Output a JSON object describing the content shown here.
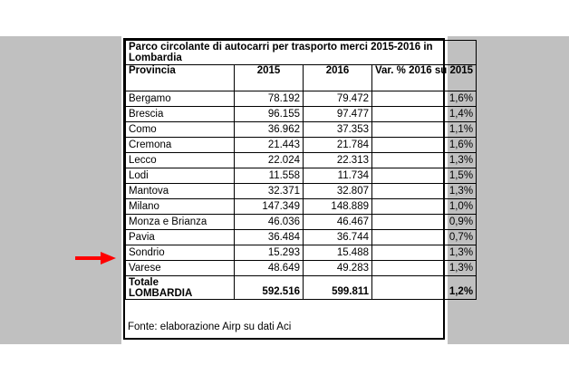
{
  "table": {
    "title": "Parco circolante di autocarri per trasporto merci 2015-2016 in Lombardia",
    "headers": {
      "province": "Provincia",
      "y2015": "2015",
      "y2016": "2016",
      "variation": "Var. % 2016 su 2015"
    },
    "rows": [
      {
        "province": "Bergamo",
        "y2015": "78.192",
        "y2016": "79.472",
        "var": "1,6%"
      },
      {
        "province": "Brescia",
        "y2015": "96.155",
        "y2016": "97.477",
        "var": "1,4%"
      },
      {
        "province": "Como",
        "y2015": "36.962",
        "y2016": "37.353",
        "var": "1,1%"
      },
      {
        "province": "Cremona",
        "y2015": "21.443",
        "y2016": "21.784",
        "var": "1,6%"
      },
      {
        "province": "Lecco",
        "y2015": "22.024",
        "y2016": "22.313",
        "var": "1,3%"
      },
      {
        "province": "Lodi",
        "y2015": "11.558",
        "y2016": "11.734",
        "var": "1,5%"
      },
      {
        "province": "Mantova",
        "y2015": "32.371",
        "y2016": "32.807",
        "var": "1,3%"
      },
      {
        "province": "Milano",
        "y2015": "147.349",
        "y2016": "148.889",
        "var": "1,0%"
      },
      {
        "province": "Monza e Brianza",
        "y2015": "46.036",
        "y2016": "46.467",
        "var": "0,9%"
      },
      {
        "province": "Pavia",
        "y2015": "36.484",
        "y2016": "36.744",
        "var": "0,7%"
      },
      {
        "province": "Sondrio",
        "y2015": "15.293",
        "y2016": "15.488",
        "var": "1,3%"
      },
      {
        "province": "Varese",
        "y2015": "48.649",
        "y2016": "49.283",
        "var": "1,3%"
      }
    ],
    "total": {
      "label_line1": "Totale",
      "label_line2": "LOMBARDIA",
      "y2015": "592.516",
      "y2016": "599.811",
      "var": "1,2%"
    },
    "source": "Fonte: elaborazione Airp su dati Aci"
  },
  "colors": {
    "background_band": "#c0c0c0",
    "arrow": "#ff0000"
  },
  "icons": {
    "pointer": "right-arrow-icon"
  }
}
